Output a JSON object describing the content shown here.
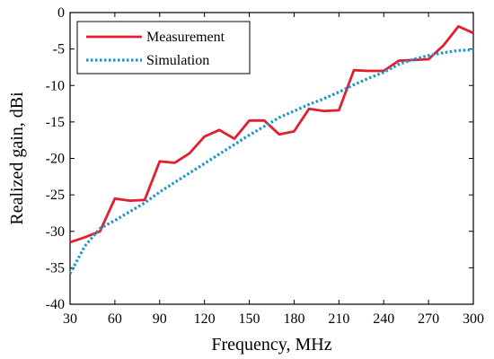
{
  "chart_data": {
    "type": "line",
    "xlabel": "Frequency, MHz",
    "ylabel": "Realized gain, dBi",
    "xlim": [
      30,
      300
    ],
    "ylim": [
      -40,
      0
    ],
    "xticks": [
      30,
      60,
      90,
      120,
      150,
      180,
      210,
      240,
      270,
      300
    ],
    "yticks": [
      0,
      -5,
      -10,
      -15,
      -20,
      -25,
      -30,
      -35,
      -40
    ],
    "xtick_labels": [
      "30",
      "60",
      "90",
      "120",
      "150",
      "180",
      "210",
      "240",
      "270",
      "300"
    ],
    "ytick_labels": [
      "0",
      "-5",
      "-10",
      "-15",
      "-20",
      "-25",
      "-30",
      "-35",
      "-40"
    ],
    "grid": false,
    "legend_position": "top-left",
    "series": [
      {
        "name": "Measurement",
        "color": "#e0202e",
        "style": "solid",
        "x": [
          30,
          40,
          50,
          60,
          70,
          80,
          90,
          100,
          110,
          120,
          130,
          140,
          150,
          160,
          170,
          180,
          190,
          200,
          210,
          220,
          230,
          240,
          250,
          260,
          270,
          280,
          290,
          300
        ],
        "y": [
          -31.5,
          -30.8,
          -30.0,
          -25.5,
          -25.8,
          -25.7,
          -20.4,
          -20.6,
          -19.3,
          -17.0,
          -16.1,
          -17.3,
          -14.8,
          -14.8,
          -16.7,
          -16.3,
          -13.2,
          -13.5,
          -13.4,
          -7.9,
          -8.0,
          -8.0,
          -6.6,
          -6.5,
          -6.4,
          -4.5,
          -1.9,
          -2.8
        ]
      },
      {
        "name": "Simulation",
        "color": "#1a98cc",
        "style": "dotted",
        "x": [
          30,
          40,
          50,
          60,
          70,
          80,
          90,
          100,
          110,
          120,
          130,
          140,
          150,
          160,
          170,
          180,
          190,
          200,
          210,
          220,
          230,
          240,
          250,
          260,
          270,
          280,
          290,
          300
        ],
        "y": [
          -35.8,
          -32.0,
          -29.6,
          -28.5,
          -27.3,
          -26.1,
          -24.6,
          -23.3,
          -22.0,
          -20.7,
          -19.4,
          -18.1,
          -16.8,
          -15.6,
          -14.4,
          -13.5,
          -12.6,
          -11.8,
          -10.9,
          -9.9,
          -9.0,
          -8.2,
          -7.1,
          -6.4,
          -5.9,
          -5.5,
          -5.2,
          -5.1
        ]
      }
    ]
  }
}
